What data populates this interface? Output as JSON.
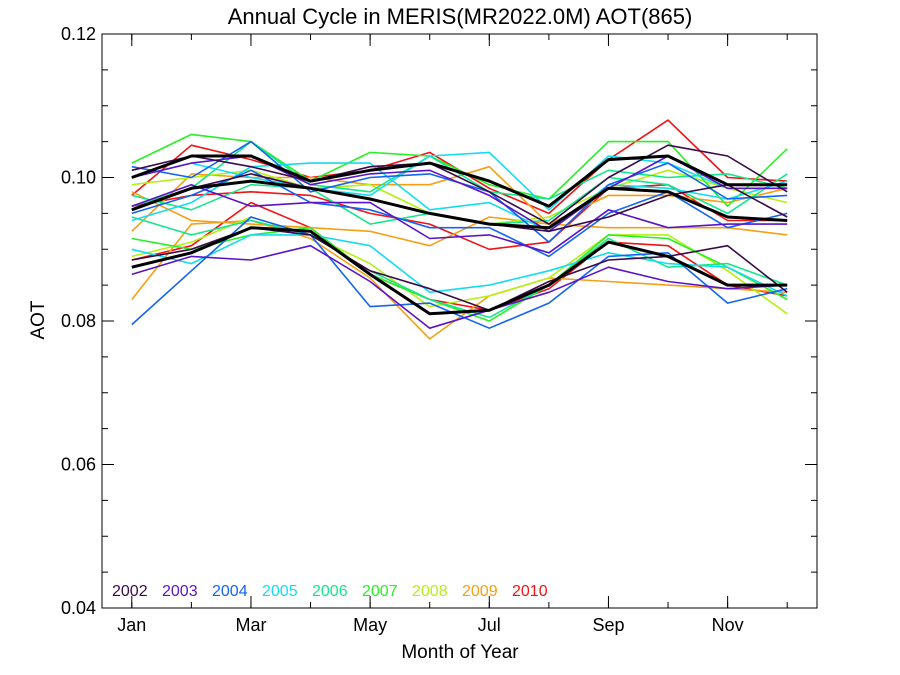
{
  "chart_data": {
    "type": "line",
    "title": "Annual Cycle in MERIS(MR2022.0M) AOT(865)",
    "xlabel": "Month of Year",
    "ylabel": "AOT",
    "xlim": [
      0.5,
      12.5
    ],
    "ylim": [
      0.04,
      0.12
    ],
    "x_ticks": [
      {
        "value": 1,
        "label": "Jan"
      },
      {
        "value": 3,
        "label": "Mar"
      },
      {
        "value": 5,
        "label": "May"
      },
      {
        "value": 7,
        "label": "Jul"
      },
      {
        "value": 9,
        "label": "Sep"
      },
      {
        "value": 11,
        "label": "Nov"
      }
    ],
    "y_ticks": [
      {
        "value": 0.04,
        "label": "0.04"
      },
      {
        "value": 0.06,
        "label": "0.06"
      },
      {
        "value": 0.08,
        "label": "0.08"
      },
      {
        "value": 0.1,
        "label": "0.10"
      },
      {
        "value": 0.12,
        "label": "0.12"
      }
    ],
    "grid": false,
    "legend_position": "bottom-left",
    "x": [
      1,
      2,
      3,
      4,
      5,
      6,
      7,
      8,
      9,
      10,
      11,
      12
    ],
    "series": [
      {
        "name": "2002",
        "color": "#3b0a4a",
        "values": [
          0.0955,
          0.0985,
          0.1005,
          0.0985,
          0.097,
          0.095,
          0.0935,
          0.0925,
          0.0945,
          0.0975,
          0.099,
          0.0945
        ]
      },
      {
        "name": "2002",
        "color": "#3b0a4a",
        "values": [
          0.101,
          0.103,
          0.1015,
          0.0995,
          0.1015,
          0.102,
          0.098,
          0.0935,
          0.1,
          0.1045,
          0.103,
          0.098
        ]
      },
      {
        "name": "2002",
        "color": "#3b0a4a",
        "values": [
          0.0885,
          0.09,
          0.093,
          0.092,
          0.087,
          0.0845,
          0.0815,
          0.0855,
          0.0885,
          0.089,
          0.0905,
          0.084
        ]
      },
      {
        "name": "2003",
        "color": "#5a14c8",
        "values": [
          0.096,
          0.099,
          0.096,
          0.0965,
          0.0965,
          0.0915,
          0.092,
          0.0895,
          0.0955,
          0.093,
          0.0935,
          0.0935
        ]
      },
      {
        "name": "2003",
        "color": "#5a14c8",
        "values": [
          0.1,
          0.102,
          0.103,
          0.099,
          0.1005,
          0.101,
          0.0975,
          0.0925,
          0.0985,
          0.103,
          0.0985,
          0.0985
        ]
      },
      {
        "name": "2003",
        "color": "#5a14c8",
        "values": [
          0.0865,
          0.089,
          0.0885,
          0.0905,
          0.0855,
          0.079,
          0.0815,
          0.084,
          0.0875,
          0.0855,
          0.0845,
          0.085
        ]
      },
      {
        "name": "2004",
        "color": "#1464f0",
        "values": [
          0.095,
          0.0975,
          0.101,
          0.0965,
          0.0955,
          0.093,
          0.093,
          0.089,
          0.095,
          0.098,
          0.093,
          0.095
        ]
      },
      {
        "name": "2004",
        "color": "#1464f0",
        "values": [
          0.1015,
          0.1,
          0.105,
          0.098,
          0.1,
          0.1005,
          0.098,
          0.091,
          0.099,
          0.102,
          0.097,
          0.0975
        ]
      },
      {
        "name": "2004",
        "color": "#1464f0",
        "values": [
          0.0795,
          0.087,
          0.0945,
          0.092,
          0.082,
          0.0825,
          0.079,
          0.0825,
          0.089,
          0.0895,
          0.0825,
          0.0845
        ]
      },
      {
        "name": "2005",
        "color": "#14dcf0",
        "values": [
          0.094,
          0.0965,
          0.1015,
          0.102,
          0.102,
          0.0955,
          0.0965,
          0.0925,
          0.099,
          0.0985,
          0.097,
          0.0995
        ]
      },
      {
        "name": "2005",
        "color": "#14dcf0",
        "values": [
          0.1,
          0.102,
          0.1,
          0.0985,
          0.0975,
          0.103,
          0.1035,
          0.0955,
          0.103,
          0.102,
          0.0985,
          0.0985
        ]
      },
      {
        "name": "2005",
        "color": "#14dcf0",
        "values": [
          0.09,
          0.088,
          0.092,
          0.092,
          0.0905,
          0.084,
          0.085,
          0.087,
          0.0895,
          0.088,
          0.0875,
          0.0835
        ]
      },
      {
        "name": "2006",
        "color": "#14e68c",
        "values": [
          0.096,
          0.0985,
          0.105,
          0.099,
          0.098,
          0.103,
          0.098,
          0.097,
          0.101,
          0.1,
          0.1005,
          0.0985
        ]
      },
      {
        "name": "2006",
        "color": "#14e68c",
        "values": [
          0.0975,
          0.0955,
          0.099,
          0.0985,
          0.0935,
          0.095,
          0.0935,
          0.094,
          0.1,
          0.099,
          0.095,
          0.1005
        ]
      },
      {
        "name": "2006",
        "color": "#14e68c",
        "values": [
          0.0945,
          0.092,
          0.094,
          0.092,
          0.087,
          0.083,
          0.0805,
          0.085,
          0.0915,
          0.0875,
          0.088,
          0.085
        ]
      },
      {
        "name": "2007",
        "color": "#28f028",
        "values": [
          0.102,
          0.106,
          0.105,
          0.0995,
          0.1035,
          0.103,
          0.099,
          0.097,
          0.105,
          0.105,
          0.096,
          0.104
        ]
      },
      {
        "name": "2007",
        "color": "#28f028",
        "values": [
          0.0915,
          0.09,
          0.092,
          0.093,
          0.0865,
          0.083,
          0.08,
          0.085,
          0.092,
          0.0915,
          0.0875,
          0.083
        ]
      },
      {
        "name": "2008",
        "color": "#b4f014",
        "values": [
          0.099,
          0.1,
          0.101,
          0.0985,
          0.099,
          0.095,
          0.0935,
          0.0945,
          0.0985,
          0.101,
          0.0985,
          0.0965
        ]
      },
      {
        "name": "2008",
        "color": "#b4f014",
        "values": [
          0.089,
          0.091,
          0.0945,
          0.092,
          0.088,
          0.082,
          0.0835,
          0.086,
          0.092,
          0.092,
          0.087,
          0.081
        ]
      },
      {
        "name": "2009",
        "color": "#f5a014",
        "values": [
          0.0925,
          0.1005,
          0.1,
          0.1,
          0.099,
          0.099,
          0.1015,
          0.0935,
          0.0975,
          0.0975,
          0.0965,
          0.0985
        ]
      },
      {
        "name": "2009",
        "color": "#f5a014",
        "values": [
          0.098,
          0.094,
          0.0935,
          0.093,
          0.0925,
          0.0905,
          0.0945,
          0.0935,
          0.093,
          0.093,
          0.093,
          0.092
        ]
      },
      {
        "name": "2009",
        "color": "#f5a014",
        "values": [
          0.083,
          0.0935,
          0.094,
          0.0915,
          0.086,
          0.0775,
          0.0835,
          0.086,
          0.0855,
          0.085,
          0.0845,
          0.084
        ]
      },
      {
        "name": "2010",
        "color": "#f01414",
        "values": [
          0.0975,
          0.1045,
          0.1025,
          0.1,
          0.101,
          0.1035,
          0.0985,
          0.095,
          0.1025,
          0.108,
          0.1,
          0.0995
        ]
      },
      {
        "name": "2010",
        "color": "#f01414",
        "values": [
          0.096,
          0.0975,
          0.098,
          0.0975,
          0.095,
          0.0935,
          0.09,
          0.091,
          0.0985,
          0.099,
          0.094,
          0.094
        ]
      },
      {
        "name": "2010",
        "color": "#f01414",
        "values": [
          0.0885,
          0.0905,
          0.0965,
          0.093,
          0.0865,
          0.083,
          0.0815,
          0.0845,
          0.091,
          0.0905,
          0.085,
          0.0835
        ]
      },
      {
        "color": "#000000",
        "values": [
          0.1,
          0.103,
          0.103,
          0.0995,
          0.101,
          0.102,
          0.0995,
          0.096,
          0.1025,
          0.103,
          0.099,
          0.099
        ]
      },
      {
        "color": "#000000",
        "values": [
          0.0955,
          0.0985,
          0.0995,
          0.0985,
          0.097,
          0.095,
          0.0935,
          0.093,
          0.0985,
          0.098,
          0.0945,
          0.094
        ]
      },
      {
        "color": "#000000",
        "values": [
          0.0875,
          0.0895,
          0.093,
          0.0925,
          0.0865,
          0.081,
          0.0815,
          0.085,
          0.091,
          0.089,
          0.085,
          0.085
        ]
      }
    ],
    "legend": [
      {
        "label": "2002",
        "color": "#3b0a4a"
      },
      {
        "label": "2003",
        "color": "#5a14c8"
      },
      {
        "label": "2004",
        "color": "#1464f0"
      },
      {
        "label": "2005",
        "color": "#14dcf0"
      },
      {
        "label": "2006",
        "color": "#14e68c"
      },
      {
        "label": "2007",
        "color": "#28f028"
      },
      {
        "label": "2008",
        "color": "#b4f014"
      },
      {
        "label": "2009",
        "color": "#f5a014"
      },
      {
        "label": "2010",
        "color": "#f01414"
      }
    ]
  }
}
